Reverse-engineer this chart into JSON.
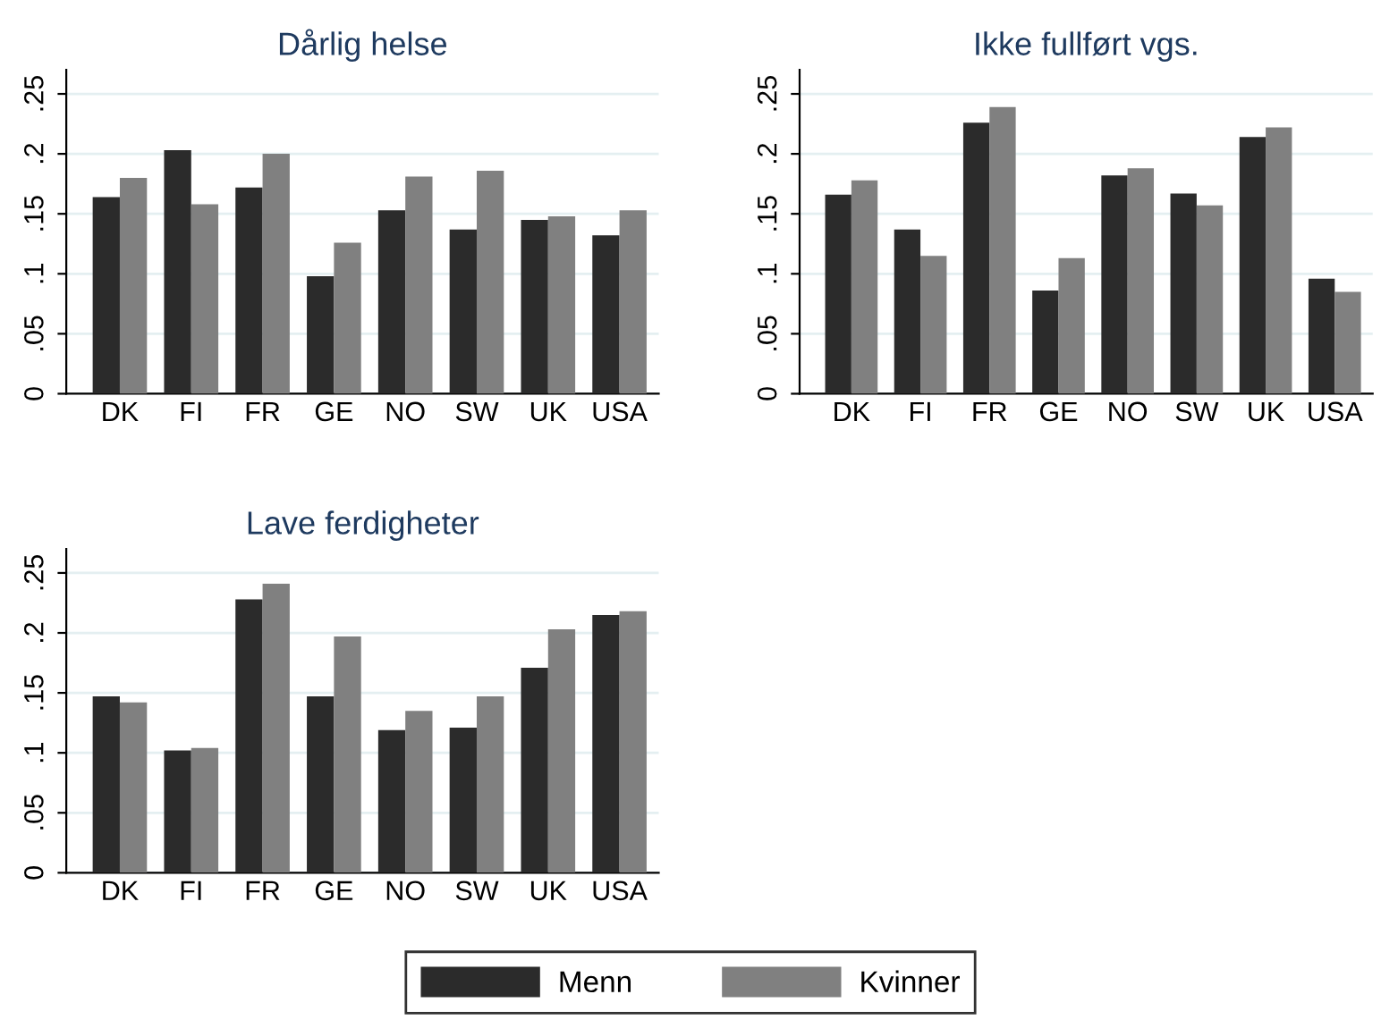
{
  "chart_data": [
    {
      "type": "bar",
      "title": "Dårlig helse",
      "categories": [
        "DK",
        "FI",
        "FR",
        "GE",
        "NO",
        "SW",
        "UK",
        "USA"
      ],
      "series": [
        {
          "color": "#2b2b2b",
          "values": [
            0.164,
            0.203,
            0.172,
            0.098,
            0.153,
            0.137,
            0.145,
            0.132
          ]
        },
        {
          "color": "#808080",
          "values": [
            0.18,
            0.158,
            0.2,
            0.126,
            0.181,
            0.186,
            0.148,
            0.153
          ]
        }
      ],
      "ylim": [
        0,
        0.27
      ],
      "yticks": [
        {
          "value": 0,
          "label": "0"
        },
        {
          "value": 0.05,
          "label": ".05"
        },
        {
          "value": 0.1,
          "label": ".1"
        },
        {
          "value": 0.15,
          "label": ".15"
        },
        {
          "value": 0.2,
          "label": ".2"
        },
        {
          "value": 0.25,
          "label": ".25"
        }
      ],
      "grid": "y",
      "legend": false
    },
    {
      "type": "bar",
      "title": "Ikke fullført vgs.",
      "categories": [
        "DK",
        "FI",
        "FR",
        "GE",
        "NO",
        "SW",
        "UK",
        "USA"
      ],
      "series": [
        {
          "color": "#2b2b2b",
          "values": [
            0.166,
            0.137,
            0.226,
            0.086,
            0.182,
            0.167,
            0.214,
            0.096
          ]
        },
        {
          "color": "#808080",
          "values": [
            0.178,
            0.115,
            0.239,
            0.113,
            0.188,
            0.157,
            0.222,
            0.085
          ]
        }
      ],
      "ylim": [
        0,
        0.27
      ],
      "yticks": [
        {
          "value": 0,
          "label": "0"
        },
        {
          "value": 0.05,
          "label": ".05"
        },
        {
          "value": 0.1,
          "label": ".1"
        },
        {
          "value": 0.15,
          "label": ".15"
        },
        {
          "value": 0.2,
          "label": ".2"
        },
        {
          "value": 0.25,
          "label": ".25"
        }
      ],
      "grid": "y",
      "legend": false
    },
    {
      "type": "bar",
      "title": "Lave ferdigheter",
      "categories": [
        "DK",
        "FI",
        "FR",
        "GE",
        "NO",
        "SW",
        "UK",
        "USA"
      ],
      "series": [
        {
          "name": "Menn",
          "color": "#2b2b2b",
          "values": [
            0.147,
            0.102,
            0.228,
            0.147,
            0.119,
            0.121,
            0.171,
            0.215
          ]
        },
        {
          "name": "Kvinner",
          "color": "#808080",
          "values": [
            0.142,
            0.104,
            0.241,
            0.197,
            0.135,
            0.147,
            0.203,
            0.218
          ]
        }
      ],
      "ylim": [
        0,
        0.27
      ],
      "yticks": [
        {
          "value": 0,
          "label": "0"
        },
        {
          "value": 0.05,
          "label": ".05"
        },
        {
          "value": 0.1,
          "label": ".1"
        },
        {
          "value": 0.15,
          "label": ".15"
        },
        {
          "value": 0.2,
          "label": ".2"
        },
        {
          "value": 0.25,
          "label": ".25"
        }
      ],
      "grid": "y",
      "legend": "bottom"
    }
  ]
}
